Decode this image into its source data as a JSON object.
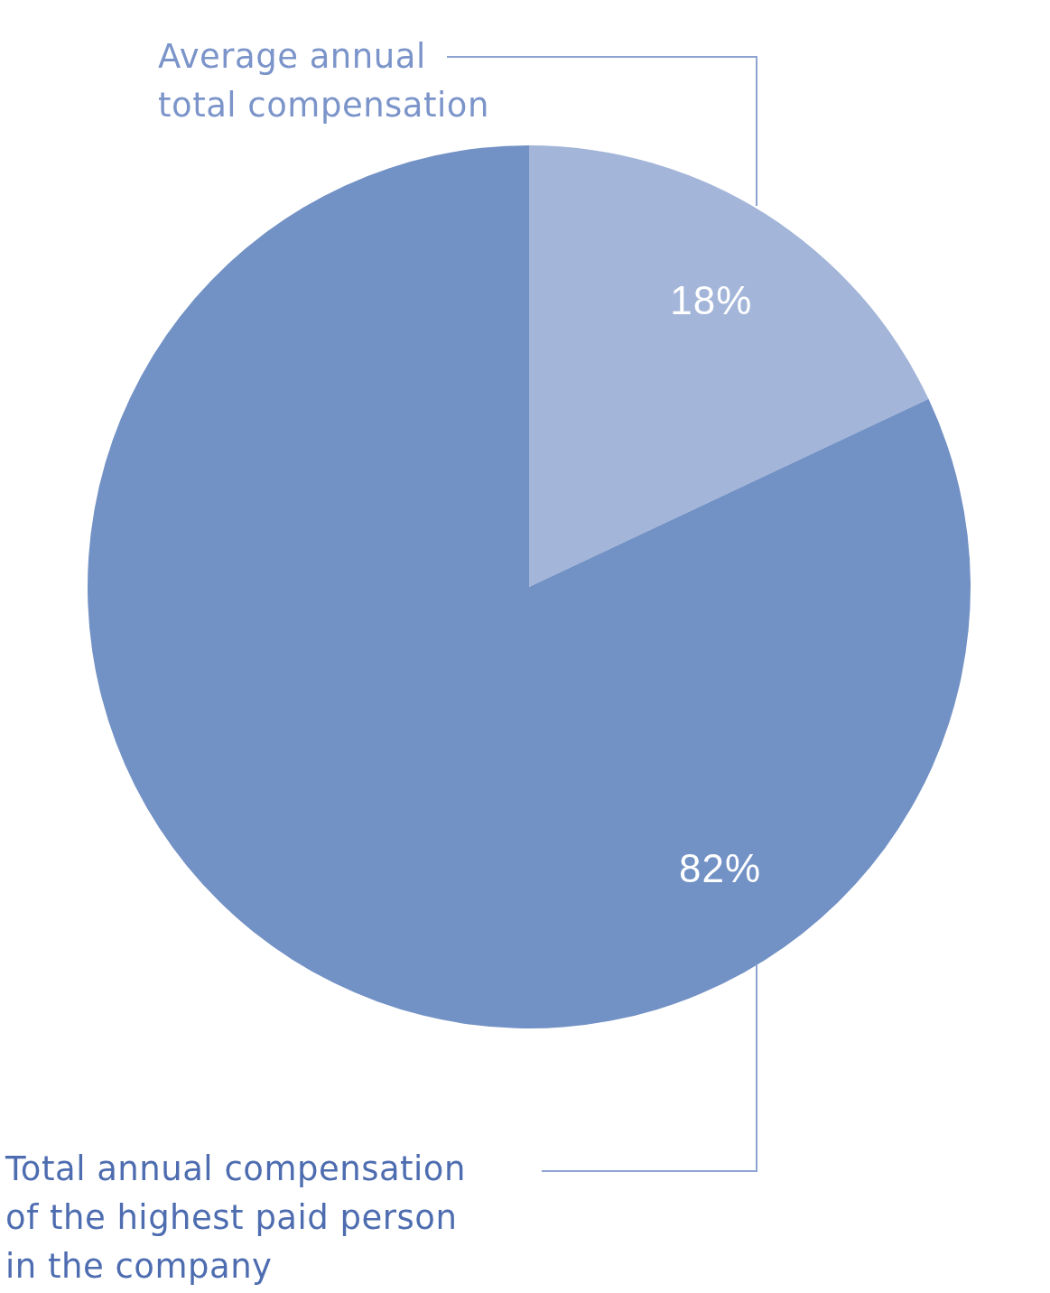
{
  "chart_data": {
    "type": "pie",
    "categories": [
      "Average annual\ntotal compensation",
      "Total annual compensation\nof the highest paid person\nin the company"
    ],
    "values": [
      18,
      82
    ],
    "colors": [
      "#a3b5d8",
      "#7291c5"
    ],
    "value_labels": [
      "18%",
      "82%"
    ],
    "legend": false
  }
}
